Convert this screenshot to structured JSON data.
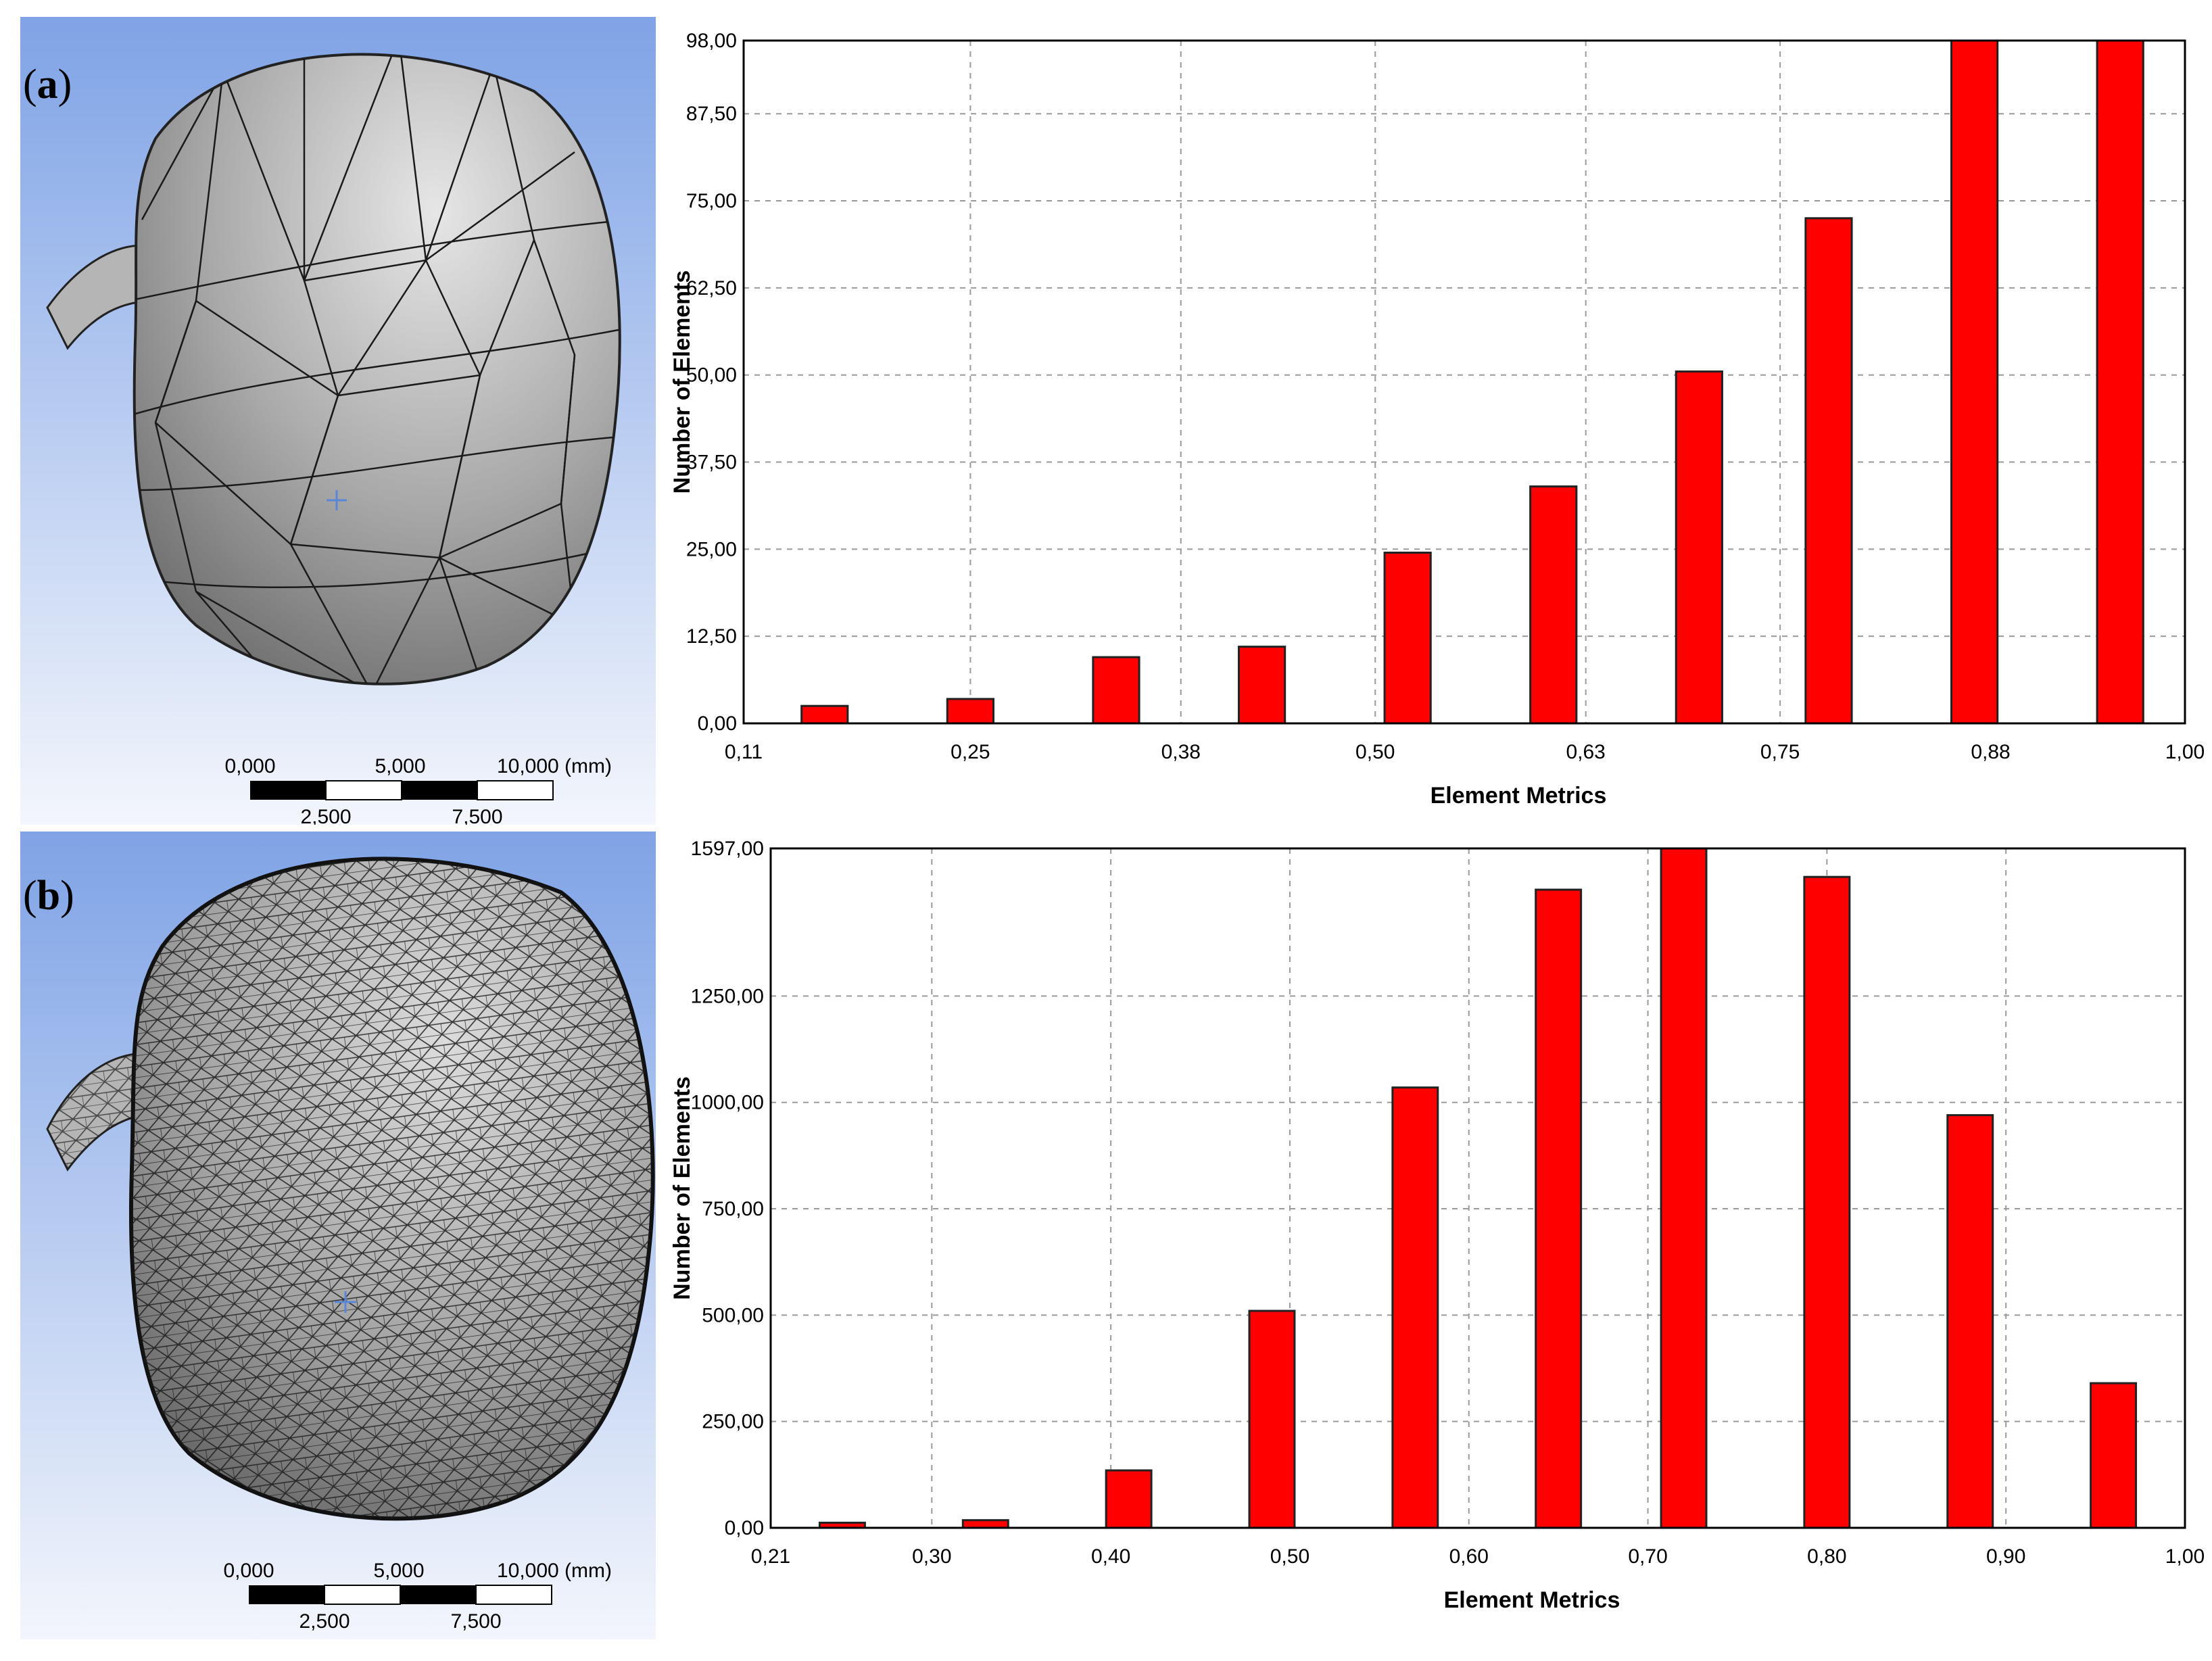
{
  "panels": [
    {
      "label": "a",
      "scale_bar": {
        "top_labels": [
          "0,000",
          "5,000",
          "10,000 (mm)"
        ],
        "bottom_labels": [
          "2,500",
          "7,500"
        ]
      }
    },
    {
      "label": "b",
      "scale_bar": {
        "top_labels": [
          "0,000",
          "5,000",
          "10,000 (mm)"
        ],
        "bottom_labels": [
          "2,500",
          "7,500"
        ]
      }
    }
  ],
  "colors": {
    "bar": "#ff0000",
    "bar_stroke": "#222222",
    "grid": "#9a9a9a",
    "viewport_top": "#7fa3e6",
    "viewport_bottom": "#f3f6fc",
    "mesh_fill": "#b9b9b9"
  },
  "chart_data": [
    {
      "type": "bar",
      "title": "",
      "xlabel": "Element Metrics",
      "ylabel": "Number of Elements",
      "xlim": [
        0.11,
        1.0
      ],
      "ylim": [
        0,
        98
      ],
      "x_ticks": [
        "0,11",
        "0,25",
        "0,38",
        "0,50",
        "0,63",
        "0,75",
        "0,88",
        "1,00"
      ],
      "y_ticks": [
        "0,00",
        "12,50",
        "25,00",
        "37,50",
        "50,00",
        "62,50",
        "75,00",
        "87,50",
        "98,00"
      ],
      "y_tick_values": [
        0,
        12.5,
        25,
        37.5,
        50,
        62.5,
        75,
        87.5,
        98
      ],
      "x_tick_values": [
        0.11,
        0.25,
        0.38,
        0.5,
        0.63,
        0.75,
        0.88,
        1.0
      ],
      "bar_centers": [
        0.16,
        0.25,
        0.34,
        0.43,
        0.52,
        0.61,
        0.7,
        0.78,
        0.87,
        0.96
      ],
      "values": [
        2.5,
        3.5,
        9.5,
        11,
        24.5,
        34,
        50.5,
        72.5,
        98,
        98
      ],
      "grid": true,
      "legend": "none"
    },
    {
      "type": "bar",
      "title": "",
      "xlabel": "Element Metrics",
      "ylabel": "Number of Elements",
      "xlim": [
        0.21,
        1.0
      ],
      "ylim": [
        0,
        1597
      ],
      "x_ticks": [
        "0,21",
        "0,30",
        "0,40",
        "0,50",
        "0,60",
        "0,70",
        "0,80",
        "0,90",
        "1,00"
      ],
      "x_tick_values": [
        0.21,
        0.3,
        0.4,
        0.5,
        0.6,
        0.7,
        0.8,
        0.9,
        1.0
      ],
      "y_ticks": [
        "0,00",
        "250,00",
        "500,00",
        "750,00",
        "1000,00",
        "1250,00",
        "1597,00"
      ],
      "y_tick_values": [
        0,
        250,
        500,
        750,
        1000,
        1250,
        1597
      ],
      "bar_centers": [
        0.25,
        0.33,
        0.41,
        0.49,
        0.57,
        0.65,
        0.72,
        0.8,
        0.88,
        0.96
      ],
      "values": [
        12,
        18,
        135,
        510,
        1035,
        1500,
        1597,
        1530,
        970,
        340
      ],
      "grid": true,
      "legend": "none"
    }
  ]
}
